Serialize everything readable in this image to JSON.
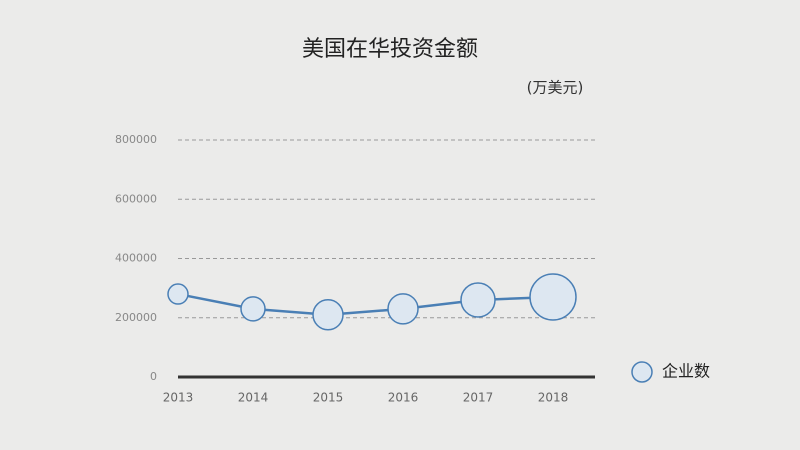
{
  "chart_data": {
    "type": "bubble-line",
    "title": "美国在华投资金额",
    "unit": "(万美元)",
    "categories": [
      "2013",
      "2014",
      "2015",
      "2016",
      "2017",
      "2018"
    ],
    "series": [
      {
        "name": "企业数",
        "color": "#4a7fb5",
        "values": [
          280000,
          230000,
          210000,
          230000,
          260000,
          270000
        ],
        "sizes": [
          10,
          12,
          15,
          15,
          17,
          23
        ]
      }
    ],
    "ylim": [
      0,
      800000
    ],
    "yticks": [
      0,
      200000,
      400000,
      600000,
      800000
    ],
    "grid": true,
    "legend": "right"
  }
}
